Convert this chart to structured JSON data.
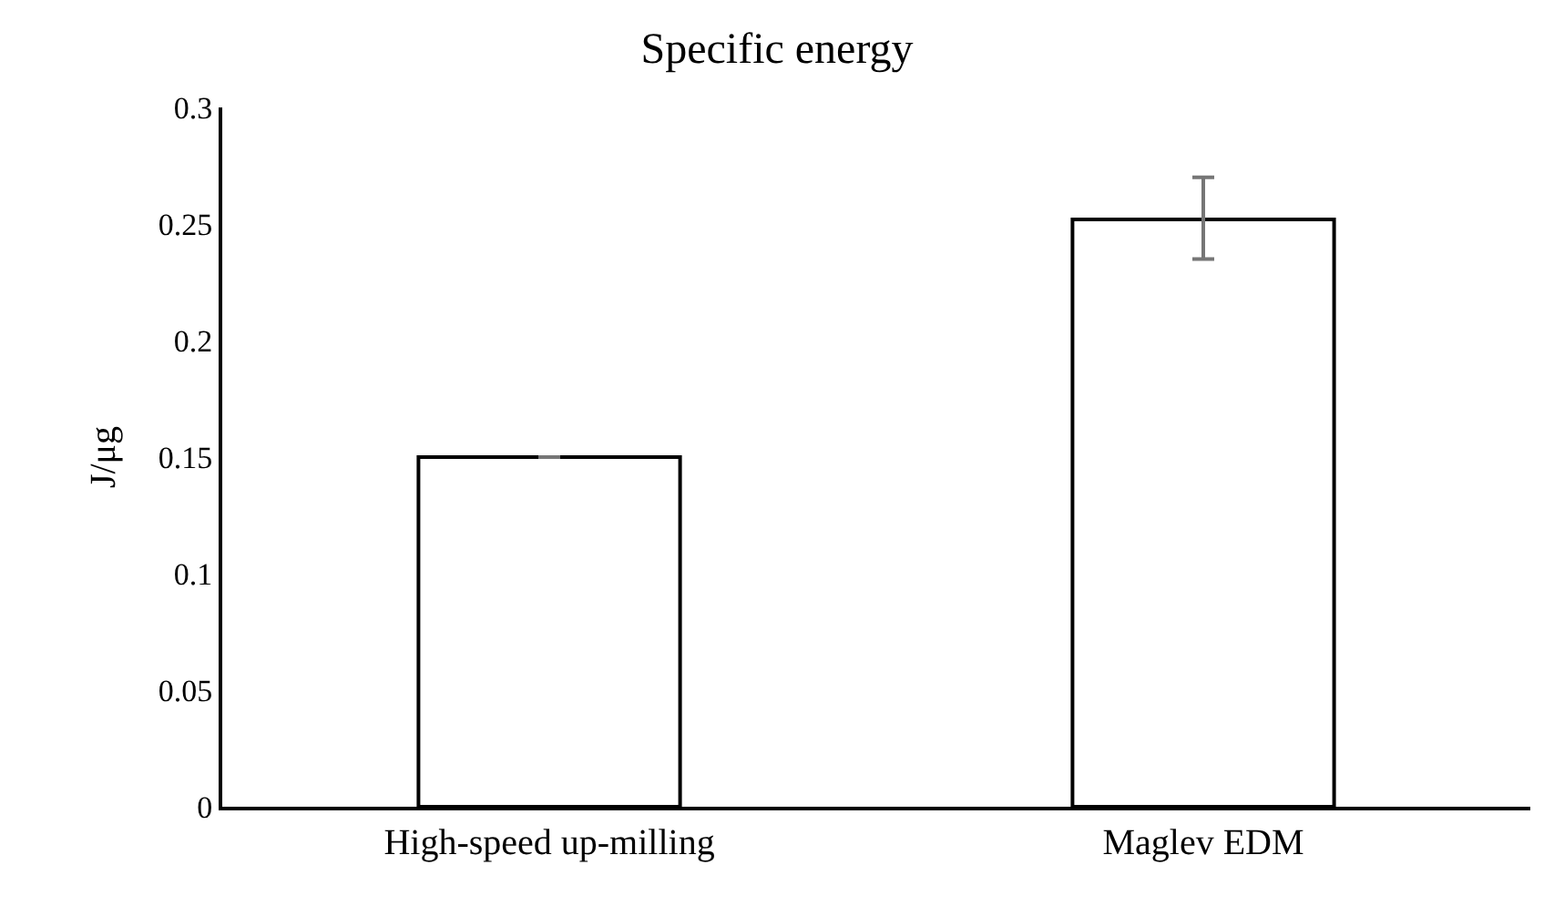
{
  "chart_data": {
    "type": "bar",
    "title": "Specific energy",
    "ylabel": "J/μg",
    "categories": [
      "High-speed up-milling",
      "Maglev EDM"
    ],
    "values": [
      0.15,
      0.252
    ],
    "errors": [
      null,
      [
        0.235,
        0.27
      ]
    ],
    "color": "#ffffff",
    "ylim": [
      0,
      0.3
    ],
    "yticks": [
      0,
      0.05,
      0.1,
      0.15,
      0.2,
      0.25,
      0.3
    ],
    "grid": false
  }
}
